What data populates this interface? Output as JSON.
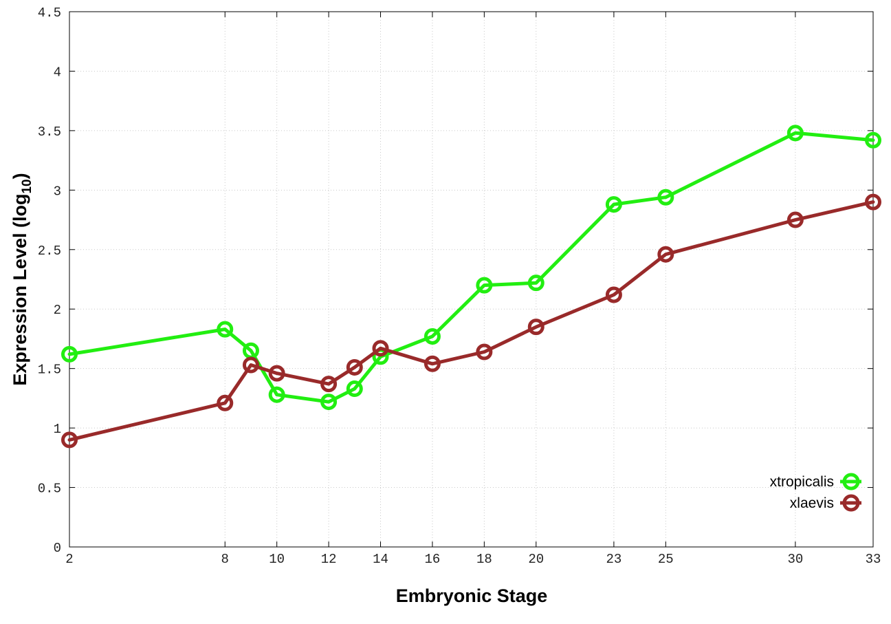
{
  "chart_data": {
    "type": "line",
    "xlabel": "Embryonic Stage",
    "ylabel": "Expression Level (log",
    "ylabel_subscript": "10",
    "ylabel_suffix": ")",
    "x_ticks": [
      2,
      8,
      10,
      12,
      14,
      16,
      18,
      20,
      23,
      25,
      30,
      33
    ],
    "x_tick_labels": [
      "2",
      "8",
      "10",
      "12",
      "14",
      "16",
      "18",
      "20",
      "23",
      "25",
      "30",
      "33"
    ],
    "y_ticks": [
      0,
      0.5,
      1,
      1.5,
      2,
      2.5,
      3,
      3.5,
      4,
      4.5
    ],
    "y_tick_labels": [
      "0",
      "0.5",
      "1",
      "1.5",
      "2",
      "2.5",
      "3",
      "3.5",
      "4",
      "4.5"
    ],
    "xlim": [
      2,
      33
    ],
    "ylim": [
      0,
      4.5
    ],
    "grid": true,
    "legend_position": "bottom-right",
    "series": [
      {
        "name": "xtropicalis",
        "color": "#22ee11",
        "x": [
          2,
          8,
          9,
          10,
          12,
          13,
          14,
          16,
          18,
          20,
          23,
          25,
          30,
          33
        ],
        "y": [
          1.62,
          1.83,
          1.65,
          1.28,
          1.22,
          1.33,
          1.6,
          1.77,
          2.2,
          2.22,
          2.88,
          2.94,
          3.48,
          3.42
        ]
      },
      {
        "name": "xlaevis",
        "color": "#992a2a",
        "x": [
          2,
          8,
          9,
          10,
          12,
          13,
          14,
          16,
          18,
          20,
          23,
          25,
          30,
          33
        ],
        "y": [
          0.9,
          1.21,
          1.53,
          1.46,
          1.37,
          1.51,
          1.67,
          1.54,
          1.64,
          1.85,
          2.12,
          2.46,
          2.75,
          2.9
        ]
      }
    ]
  }
}
